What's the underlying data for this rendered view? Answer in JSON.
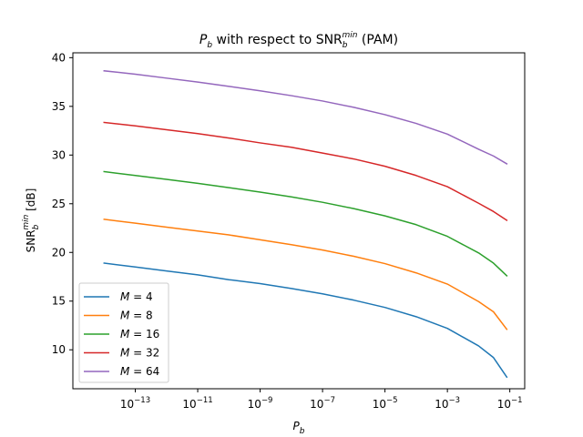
{
  "chart_data": {
    "type": "line",
    "title": {
      "main": "P",
      "main_sub": "b",
      "middle": " with respect to SNR",
      "snr_sub": "b",
      "snr_sup": "min",
      "suffix": " (PAM)"
    },
    "xlabel": {
      "main": "P",
      "sub": "b"
    },
    "ylabel": {
      "main": "SNR",
      "sub": "b",
      "sup": "min",
      "suffix": " [dB]"
    },
    "xscale": "log",
    "xlim": [
      1e-15,
      0.3
    ],
    "ylim": [
      6,
      40.5
    ],
    "x_ticks": [
      {
        "base": "10",
        "exp": "−13",
        "value": 1e-13
      },
      {
        "base": "10",
        "exp": "−11",
        "value": 1e-11
      },
      {
        "base": "10",
        "exp": "−9",
        "value": 1e-09
      },
      {
        "base": "10",
        "exp": "−7",
        "value": 1e-07
      },
      {
        "base": "10",
        "exp": "−5",
        "value": 1e-05
      },
      {
        "base": "10",
        "exp": "−3",
        "value": 0.001
      },
      {
        "base": "10",
        "exp": "−1",
        "value": 0.1
      }
    ],
    "y_ticks": [
      {
        "label": "10",
        "value": 10
      },
      {
        "label": "15",
        "value": 15
      },
      {
        "label": "20",
        "value": 20
      },
      {
        "label": "25",
        "value": 25
      },
      {
        "label": "30",
        "value": 30
      },
      {
        "label": "35",
        "value": 35
      },
      {
        "label": "40",
        "value": 40
      }
    ],
    "grid": false,
    "legend_position": "bottom-left",
    "x": [
      1e-14,
      1e-13,
      1e-12,
      1e-11,
      1e-10,
      1e-09,
      1e-08,
      1e-07,
      1e-06,
      1e-05,
      0.0001,
      0.001,
      0.01,
      0.03,
      0.08
    ],
    "series": [
      {
        "name": "M = 4",
        "m_value": "4",
        "color": "#1f77b4",
        "values": [
          18.9,
          18.5,
          18.1,
          17.7,
          17.2,
          16.8,
          16.3,
          15.75,
          15.1,
          14.35,
          13.4,
          12.2,
          10.4,
          9.2,
          7.2
        ]
      },
      {
        "name": "M = 8",
        "m_value": "8",
        "color": "#ff7f0e",
        "values": [
          23.4,
          23.0,
          22.6,
          22.2,
          21.8,
          21.3,
          20.8,
          20.25,
          19.6,
          18.85,
          17.9,
          16.75,
          14.95,
          13.9,
          12.1
        ]
      },
      {
        "name": "M = 16",
        "m_value": "16",
        "color": "#2ca02c",
        "values": [
          28.3,
          27.9,
          27.5,
          27.1,
          26.65,
          26.2,
          25.7,
          25.15,
          24.5,
          23.75,
          22.85,
          21.65,
          19.95,
          18.9,
          17.6
        ]
      },
      {
        "name": "M = 32",
        "m_value": "32",
        "color": "#d62728",
        "values": [
          33.35,
          33.0,
          32.6,
          32.2,
          31.75,
          31.25,
          30.8,
          30.2,
          29.6,
          28.85,
          27.9,
          26.75,
          25.05,
          24.2,
          23.3
        ]
      },
      {
        "name": "M = 64",
        "m_value": "64",
        "color": "#9467bd",
        "values": [
          38.65,
          38.3,
          37.9,
          37.5,
          37.05,
          36.6,
          36.1,
          35.55,
          34.9,
          34.15,
          33.25,
          32.15,
          30.6,
          29.9,
          29.1
        ]
      }
    ]
  }
}
